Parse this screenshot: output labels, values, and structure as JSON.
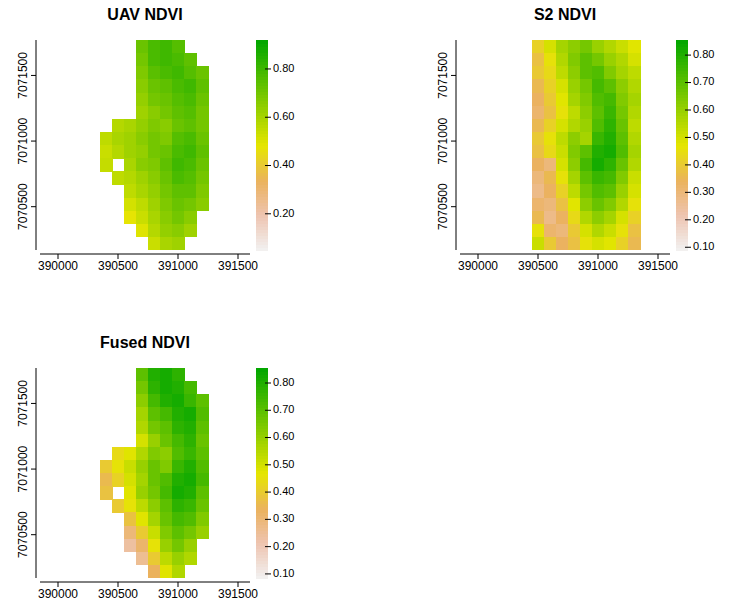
{
  "chart_data": [
    {
      "type": "heatmap",
      "title": "UAV NDVI",
      "xlim": [
        389850,
        391600
      ],
      "ylim": [
        7070170,
        7071770
      ],
      "xticks": [
        390000,
        390500,
        391000,
        391500
      ],
      "yticks": [
        7070500,
        7071000,
        7071500
      ],
      "x": [
        390400,
        390500,
        390600,
        390700,
        390800,
        390900,
        391000,
        391100,
        391200,
        391300
      ],
      "y": [
        7071720,
        7071620,
        7071520,
        7071420,
        7071320,
        7071220,
        7071120,
        7071020,
        7070920,
        7070820,
        7070720,
        7070620,
        7070520,
        7070420,
        7070320,
        7070220
      ],
      "cells": [
        [
          null,
          null,
          null,
          0.72,
          0.78,
          0.8,
          0.76,
          null,
          null,
          null
        ],
        [
          null,
          null,
          null,
          0.7,
          0.78,
          0.8,
          0.78,
          0.74,
          null,
          null
        ],
        [
          null,
          null,
          null,
          0.68,
          0.75,
          0.78,
          0.8,
          0.76,
          0.72,
          null
        ],
        [
          null,
          null,
          null,
          0.66,
          0.72,
          0.74,
          0.78,
          0.8,
          0.74,
          null
        ],
        [
          null,
          null,
          null,
          0.64,
          0.7,
          0.72,
          0.76,
          0.78,
          0.72,
          null
        ],
        [
          null,
          null,
          null,
          0.62,
          0.66,
          0.7,
          0.74,
          0.76,
          0.7,
          null
        ],
        [
          null,
          0.58,
          0.6,
          0.64,
          0.68,
          0.66,
          0.72,
          0.74,
          0.7,
          null
        ],
        [
          0.56,
          0.6,
          0.62,
          0.66,
          0.7,
          0.68,
          0.76,
          0.78,
          0.72,
          null
        ],
        [
          0.54,
          0.58,
          0.62,
          0.64,
          0.7,
          0.72,
          0.78,
          0.8,
          0.74,
          null
        ],
        [
          0.55,
          null,
          0.6,
          0.66,
          0.68,
          0.74,
          0.8,
          0.78,
          0.72,
          null
        ],
        [
          null,
          0.56,
          0.58,
          0.62,
          0.66,
          0.72,
          0.78,
          0.76,
          0.7,
          null
        ],
        [
          null,
          null,
          0.56,
          0.6,
          0.64,
          0.7,
          0.74,
          0.74,
          0.68,
          null
        ],
        [
          null,
          null,
          0.52,
          0.56,
          0.62,
          0.68,
          0.72,
          0.7,
          0.66,
          null
        ],
        [
          null,
          null,
          0.48,
          0.54,
          0.6,
          0.66,
          0.7,
          0.66,
          null,
          null
        ],
        [
          null,
          null,
          null,
          0.5,
          0.58,
          0.64,
          0.66,
          0.62,
          null,
          null
        ],
        [
          null,
          null,
          null,
          null,
          0.54,
          0.6,
          0.62,
          null,
          null,
          null
        ]
      ],
      "colorbar": {
        "range": [
          0.05,
          0.92
        ],
        "ticks": [
          {
            "value": 0.2,
            "label": "0.20"
          },
          {
            "value": 0.4,
            "label": "0.40"
          },
          {
            "value": 0.6,
            "label": "0.60"
          },
          {
            "value": 0.8,
            "label": "0.80"
          }
        ]
      }
    },
    {
      "type": "heatmap",
      "title": "S2 NDVI",
      "xlim": [
        389850,
        391600
      ],
      "ylim": [
        7070170,
        7071770
      ],
      "xticks": [
        390000,
        390500,
        391000,
        391500
      ],
      "yticks": [
        7070500,
        7071000,
        7071500
      ],
      "x": [
        390400,
        390500,
        390600,
        390700,
        390800,
        390900,
        391000,
        391100,
        391200,
        391300
      ],
      "y": [
        7071720,
        7071620,
        7071520,
        7071420,
        7071320,
        7071220,
        7071120,
        7071020,
        7070920,
        7070820,
        7070720,
        7070620,
        7070520,
        7070420,
        7070320,
        7070220
      ],
      "cells": [
        [
          null,
          0.42,
          0.5,
          0.58,
          0.62,
          0.66,
          0.6,
          0.56,
          0.52,
          0.48
        ],
        [
          null,
          0.38,
          0.46,
          0.56,
          0.64,
          0.7,
          0.66,
          0.6,
          0.56,
          0.5
        ],
        [
          null,
          0.4,
          0.44,
          0.54,
          0.62,
          0.7,
          0.72,
          0.64,
          0.58,
          0.54
        ],
        [
          null,
          0.36,
          0.42,
          0.5,
          0.6,
          0.66,
          0.74,
          0.7,
          0.62,
          0.56
        ],
        [
          null,
          0.34,
          0.4,
          0.48,
          0.58,
          0.64,
          0.72,
          0.74,
          0.64,
          0.58
        ],
        [
          null,
          0.32,
          0.38,
          0.46,
          0.54,
          0.62,
          0.7,
          0.76,
          0.66,
          0.56
        ],
        [
          null,
          0.36,
          0.42,
          0.5,
          0.56,
          0.6,
          0.72,
          0.78,
          0.68,
          0.54
        ],
        [
          null,
          0.4,
          0.46,
          0.54,
          0.62,
          0.58,
          0.76,
          0.8,
          0.7,
          0.56
        ],
        [
          null,
          0.38,
          0.44,
          0.52,
          0.64,
          0.7,
          0.8,
          0.82,
          0.72,
          0.58
        ],
        [
          null,
          0.34,
          0.3,
          0.5,
          0.62,
          0.74,
          0.82,
          0.78,
          0.68,
          0.56
        ],
        [
          null,
          0.3,
          0.36,
          0.46,
          0.58,
          0.7,
          0.76,
          0.74,
          0.64,
          0.52
        ],
        [
          null,
          0.28,
          0.34,
          0.42,
          0.54,
          0.66,
          0.72,
          0.7,
          0.6,
          0.5
        ],
        [
          null,
          0.32,
          0.3,
          0.38,
          0.48,
          0.62,
          0.68,
          0.64,
          0.56,
          0.46
        ],
        [
          null,
          0.36,
          0.28,
          0.34,
          0.44,
          0.56,
          0.62,
          0.58,
          0.5,
          0.42
        ],
        [
          null,
          0.46,
          0.32,
          0.3,
          0.4,
          0.5,
          0.56,
          0.52,
          0.46,
          0.38
        ],
        [
          null,
          0.52,
          0.4,
          0.34,
          0.38,
          0.46,
          0.5,
          0.48,
          0.42,
          0.36
        ]
      ],
      "colorbar": {
        "range": [
          0.09,
          0.855
        ],
        "ticks": [
          {
            "value": 0.1,
            "label": "0.10"
          },
          {
            "value": 0.2,
            "label": "0.20"
          },
          {
            "value": 0.3,
            "label": "0.30"
          },
          {
            "value": 0.4,
            "label": "0.40"
          },
          {
            "value": 0.5,
            "label": "0.50"
          },
          {
            "value": 0.6,
            "label": "0.60"
          },
          {
            "value": 0.7,
            "label": "0.70"
          },
          {
            "value": 0.8,
            "label": "0.80"
          }
        ]
      }
    },
    {
      "type": "heatmap",
      "title": "Fused NDVI",
      "xlim": [
        389850,
        391600
      ],
      "ylim": [
        7070170,
        7071770
      ],
      "xticks": [
        390000,
        390500,
        391000,
        391500
      ],
      "yticks": [
        7070500,
        7071000,
        7071500
      ],
      "x": [
        390400,
        390500,
        390600,
        390700,
        390800,
        390900,
        391000,
        391100,
        391200,
        391300
      ],
      "y": [
        7071720,
        7071620,
        7071520,
        7071420,
        7071320,
        7071220,
        7071120,
        7071020,
        7070920,
        7070820,
        7070720,
        7070620,
        7070520,
        7070420,
        7070320,
        7070220
      ],
      "cells": [
        [
          null,
          null,
          null,
          0.7,
          0.8,
          0.82,
          0.78,
          null,
          null,
          null
        ],
        [
          null,
          null,
          null,
          0.66,
          0.78,
          0.82,
          0.8,
          0.74,
          null,
          null
        ],
        [
          null,
          null,
          null,
          0.62,
          0.74,
          0.8,
          0.82,
          0.76,
          0.7,
          null
        ],
        [
          null,
          null,
          null,
          0.58,
          0.7,
          0.74,
          0.8,
          0.82,
          0.72,
          null
        ],
        [
          null,
          null,
          null,
          0.56,
          0.66,
          0.7,
          0.78,
          0.8,
          0.7,
          null
        ],
        [
          null,
          null,
          null,
          0.5,
          0.6,
          0.68,
          0.74,
          0.78,
          0.68,
          null
        ],
        [
          null,
          0.44,
          0.48,
          0.56,
          0.64,
          0.62,
          0.72,
          0.76,
          0.7,
          null
        ],
        [
          0.4,
          0.46,
          0.52,
          0.6,
          0.68,
          0.64,
          0.76,
          0.8,
          0.72,
          null
        ],
        [
          0.36,
          0.42,
          0.5,
          0.58,
          0.68,
          0.72,
          0.8,
          0.82,
          0.74,
          null
        ],
        [
          0.38,
          null,
          0.48,
          0.6,
          0.66,
          0.74,
          0.82,
          0.8,
          0.7,
          null
        ],
        [
          null,
          0.4,
          0.46,
          0.54,
          0.62,
          0.7,
          0.78,
          0.76,
          0.68,
          null
        ],
        [
          null,
          null,
          0.38,
          0.48,
          0.58,
          0.68,
          0.74,
          0.72,
          0.64,
          null
        ],
        [
          null,
          null,
          0.3,
          0.4,
          0.52,
          0.64,
          0.7,
          0.66,
          0.6,
          null
        ],
        [
          null,
          null,
          0.24,
          0.32,
          0.46,
          0.6,
          0.66,
          0.6,
          null,
          null
        ],
        [
          null,
          null,
          null,
          0.26,
          0.4,
          0.54,
          0.6,
          0.56,
          null,
          null
        ],
        [
          null,
          null,
          null,
          null,
          0.34,
          0.48,
          0.56,
          null,
          null,
          null
        ]
      ],
      "colorbar": {
        "range": [
          0.085,
          0.855
        ],
        "ticks": [
          {
            "value": 0.1,
            "label": "0.10"
          },
          {
            "value": 0.2,
            "label": "0.20"
          },
          {
            "value": 0.3,
            "label": "0.30"
          },
          {
            "value": 0.4,
            "label": "0.40"
          },
          {
            "value": 0.5,
            "label": "0.50"
          },
          {
            "value": 0.6,
            "label": "0.60"
          },
          {
            "value": 0.7,
            "label": "0.70"
          },
          {
            "value": 0.8,
            "label": "0.80"
          }
        ]
      }
    }
  ]
}
